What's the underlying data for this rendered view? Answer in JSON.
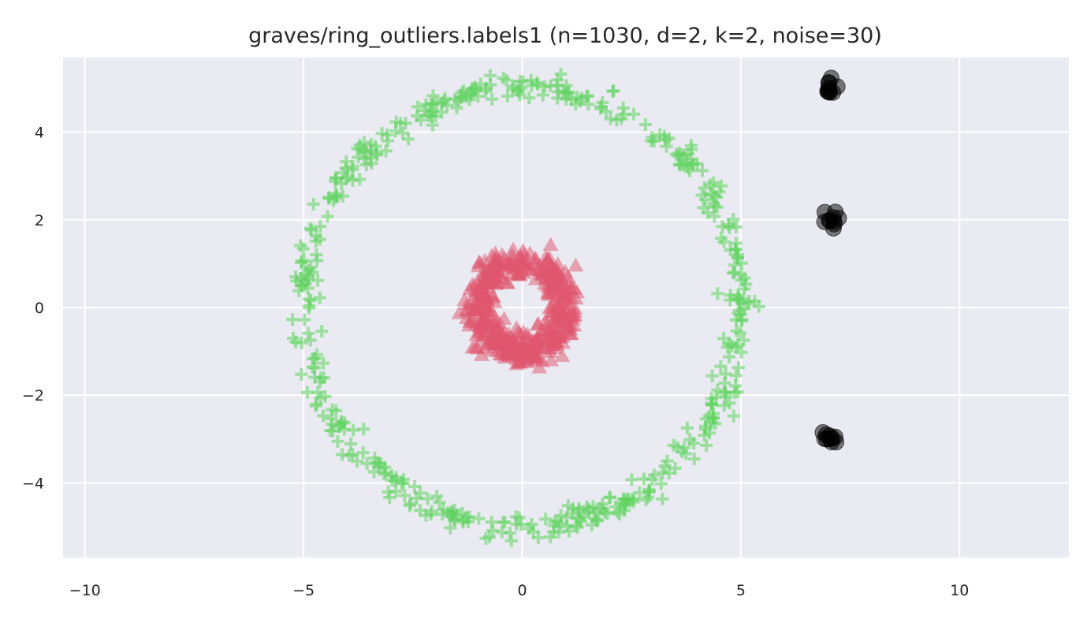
{
  "chart_data": {
    "type": "scatter",
    "title": "graves/ring_outliers.labels1 (n=1030, d=2, k=2, noise=30)",
    "xlabel": "",
    "ylabel": "",
    "xlim": [
      -10.5,
      12.5
    ],
    "ylim": [
      -5.7,
      5.7
    ],
    "x_ticks": [
      -10,
      -5,
      0,
      5,
      10
    ],
    "x_tick_labels": [
      "−10",
      "−5",
      "0",
      "5",
      "10"
    ],
    "y_ticks": [
      -4,
      -2,
      0,
      2,
      4
    ],
    "y_tick_labels": [
      "−4",
      "−2",
      "0",
      "2",
      "4"
    ],
    "grid": true,
    "background_color": "#eaeaf2",
    "series": [
      {
        "marker": "plus",
        "color": "#5fd35f",
        "shape": "ring",
        "center": [
          0,
          0
        ],
        "radius": 5.0,
        "spread": 0.15,
        "count": 500
      },
      {
        "marker": "triangle",
        "color": "#e0566e",
        "shape": "ring",
        "center": [
          0,
          0
        ],
        "radius": 1.0,
        "spread": 0.18,
        "count": 500
      },
      {
        "marker": "circle",
        "color": "#000000",
        "shape": "clusters",
        "centers": [
          [
            7.0,
            5.0
          ],
          [
            7.0,
            2.0
          ],
          [
            7.0,
            -3.0
          ]
        ],
        "spread": 0.1,
        "count": 30
      }
    ]
  }
}
